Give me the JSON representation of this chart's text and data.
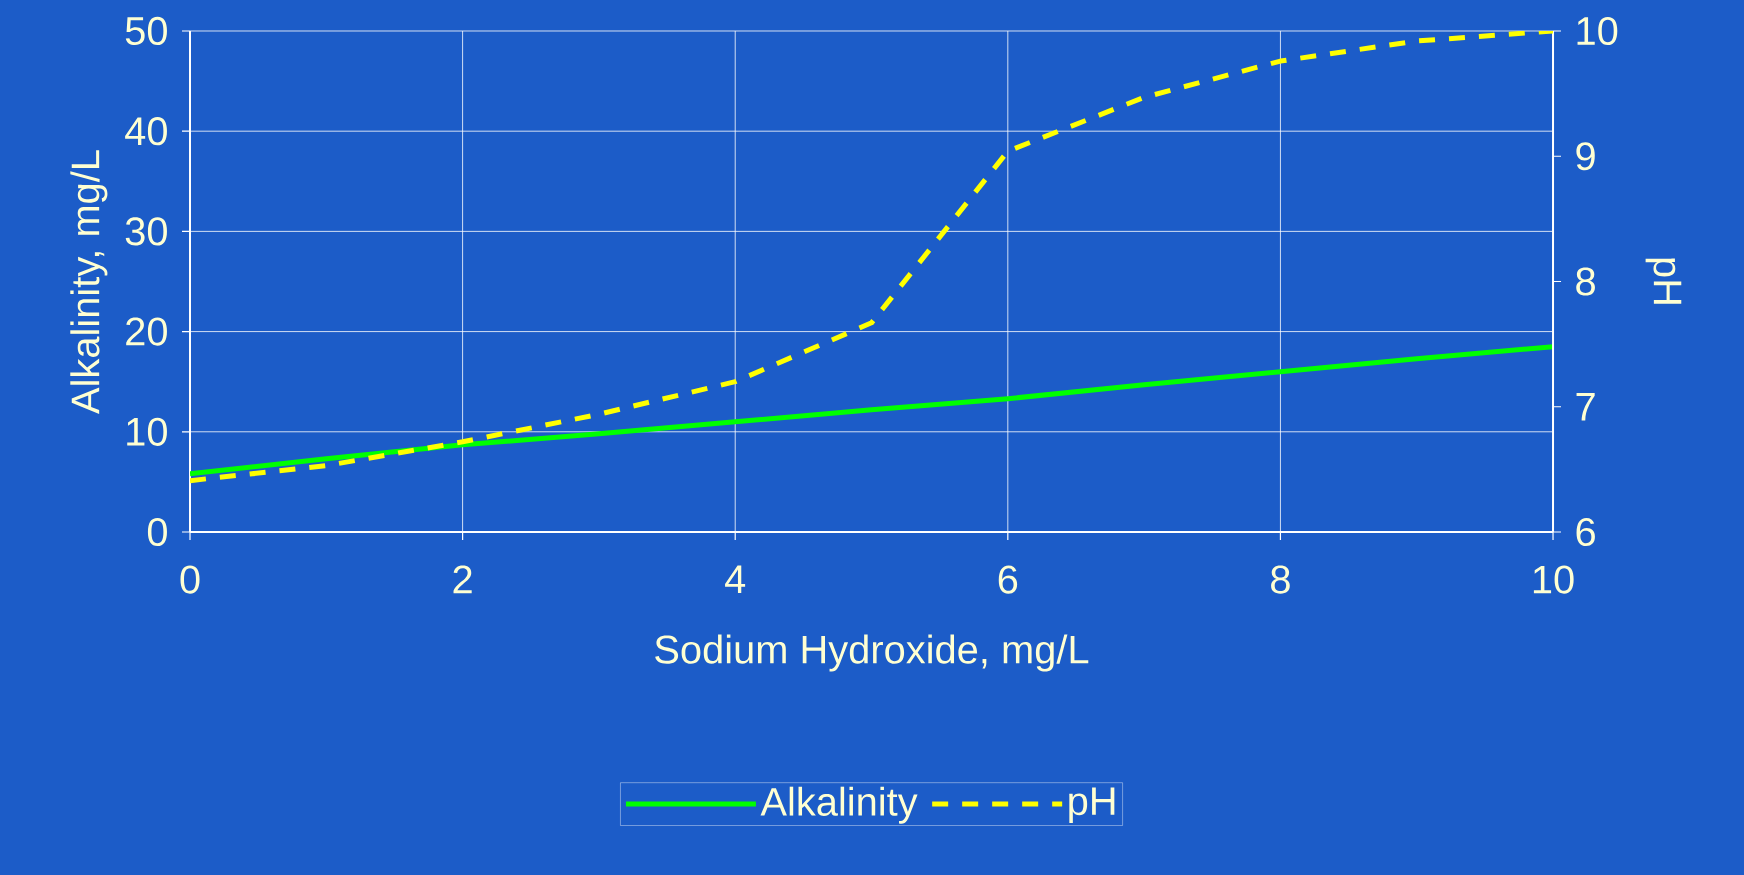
{
  "chart_data": {
    "type": "line",
    "xlabel": "Sodium Hydroxide, mg/L",
    "ylabel": "Alkalinity, mg/L",
    "y2label": "pH",
    "x": [
      0,
      1,
      2,
      3,
      4,
      5,
      6,
      7,
      8,
      9,
      10
    ],
    "series": [
      {
        "name": "Alkalinity",
        "color": "#00ff00",
        "line_style": "solid",
        "values": [
          5.8,
          7.3,
          8.7,
          9.8,
          11,
          12.2,
          13.3,
          14.7,
          16,
          17.3,
          18.5
        ]
      },
      {
        "name": "pH",
        "color": "#ffff00",
        "line_style": "dashed",
        "axis": "y2",
        "values": [
          6.41,
          6.53,
          6.72,
          6.94,
          7.2,
          7.67,
          9.04,
          9.47,
          9.76,
          9.92,
          10.0
        ]
      }
    ],
    "xlim": [
      0,
      10
    ],
    "ylim": [
      0,
      50
    ],
    "y2lim": [
      6,
      10
    ],
    "xticks": [
      0,
      2,
      4,
      6,
      8,
      10
    ],
    "yticks": [
      0,
      10,
      20,
      30,
      40,
      50
    ],
    "y2ticks": [
      6,
      7,
      8,
      9,
      10
    ],
    "grid": true,
    "legend": "bottom"
  }
}
